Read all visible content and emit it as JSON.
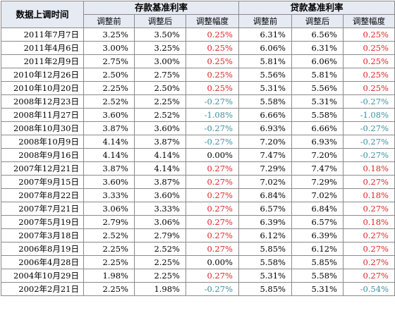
{
  "header": {
    "date_col": "数据上调时间",
    "deposit_group": "存款基准利率",
    "loan_group": "贷款基准利率",
    "sub_before": "调整前",
    "sub_after": "调整后",
    "sub_change": "调整幅度"
  },
  "colors": {
    "increase": "#e02222",
    "decrease": "#3a8fa0",
    "header_bg": "#e6eaf3"
  },
  "rows": [
    {
      "date": "2011年7月7日",
      "dep_before": "3.25%",
      "dep_after": "3.50%",
      "dep_change": "0.25%",
      "dep_dir": "up",
      "loan_before": "6.31%",
      "loan_after": "6.56%",
      "loan_change": "0.25%",
      "loan_dir": "up"
    },
    {
      "date": "2011年4月6日",
      "dep_before": "3.00%",
      "dep_after": "3.25%",
      "dep_change": "0.25%",
      "dep_dir": "up",
      "loan_before": "6.06%",
      "loan_after": "6.31%",
      "loan_change": "0.25%",
      "loan_dir": "up"
    },
    {
      "date": "2011年2月9日",
      "dep_before": "2.75%",
      "dep_after": "3.00%",
      "dep_change": "0.25%",
      "dep_dir": "up",
      "loan_before": "5.81%",
      "loan_after": "6.06%",
      "loan_change": "0.25%",
      "loan_dir": "up"
    },
    {
      "date": "2010年12月26日",
      "dep_before": "2.50%",
      "dep_after": "2.75%",
      "dep_change": "0.25%",
      "dep_dir": "up",
      "loan_before": "5.56%",
      "loan_after": "5.81%",
      "loan_change": "0.25%",
      "loan_dir": "up"
    },
    {
      "date": "2010年10月20日",
      "dep_before": "2.25%",
      "dep_after": "2.50%",
      "dep_change": "0.25%",
      "dep_dir": "up",
      "loan_before": "5.31%",
      "loan_after": "5.56%",
      "loan_change": "0.25%",
      "loan_dir": "up"
    },
    {
      "date": "2008年12月23日",
      "dep_before": "2.52%",
      "dep_after": "2.25%",
      "dep_change": "-0.27%",
      "dep_dir": "down",
      "loan_before": "5.58%",
      "loan_after": "5.31%",
      "loan_change": "-0.27%",
      "loan_dir": "down"
    },
    {
      "date": "2008年11月27日",
      "dep_before": "3.60%",
      "dep_after": "2.52%",
      "dep_change": "-1.08%",
      "dep_dir": "down",
      "loan_before": "6.66%",
      "loan_after": "5.58%",
      "loan_change": "-1.08%",
      "loan_dir": "down"
    },
    {
      "date": "2008年10月30日",
      "dep_before": "3.87%",
      "dep_after": "3.60%",
      "dep_change": "-0.27%",
      "dep_dir": "down",
      "loan_before": "6.93%",
      "loan_after": "6.66%",
      "loan_change": "-0.27%",
      "loan_dir": "down"
    },
    {
      "date": "2008年10月9日",
      "dep_before": "4.14%",
      "dep_after": "3.87%",
      "dep_change": "-0.27%",
      "dep_dir": "down",
      "loan_before": "7.20%",
      "loan_after": "6.93%",
      "loan_change": "-0.27%",
      "loan_dir": "down"
    },
    {
      "date": "2008年9月16日",
      "dep_before": "4.14%",
      "dep_after": "4.14%",
      "dep_change": "0.00%",
      "dep_dir": "zero",
      "loan_before": "7.47%",
      "loan_after": "7.20%",
      "loan_change": "-0.27%",
      "loan_dir": "down"
    },
    {
      "date": "2007年12月21日",
      "dep_before": "3.87%",
      "dep_after": "4.14%",
      "dep_change": "0.27%",
      "dep_dir": "up",
      "loan_before": "7.29%",
      "loan_after": "7.47%",
      "loan_change": "0.18%",
      "loan_dir": "up"
    },
    {
      "date": "2007年9月15日",
      "dep_before": "3.60%",
      "dep_after": "3.87%",
      "dep_change": "0.27%",
      "dep_dir": "up",
      "loan_before": "7.02%",
      "loan_after": "7.29%",
      "loan_change": "0.27%",
      "loan_dir": "up"
    },
    {
      "date": "2007年8月22日",
      "dep_before": "3.33%",
      "dep_after": "3.60%",
      "dep_change": "0.27%",
      "dep_dir": "up",
      "loan_before": "6.84%",
      "loan_after": "7.02%",
      "loan_change": "0.18%",
      "loan_dir": "up"
    },
    {
      "date": "2007年7月21日",
      "dep_before": "3.06%",
      "dep_after": "3.33%",
      "dep_change": "0.27%",
      "dep_dir": "up",
      "loan_before": "6.57%",
      "loan_after": "6.84%",
      "loan_change": "0.27%",
      "loan_dir": "up"
    },
    {
      "date": "2007年5月19日",
      "dep_before": "2.79%",
      "dep_after": "3.06%",
      "dep_change": "0.27%",
      "dep_dir": "up",
      "loan_before": "6.39%",
      "loan_after": "6.57%",
      "loan_change": "0.18%",
      "loan_dir": "up"
    },
    {
      "date": "2007年3月18日",
      "dep_before": "2.52%",
      "dep_after": "2.79%",
      "dep_change": "0.27%",
      "dep_dir": "up",
      "loan_before": "6.12%",
      "loan_after": "6.39%",
      "loan_change": "0.27%",
      "loan_dir": "up"
    },
    {
      "date": "2006年8月19日",
      "dep_before": "2.25%",
      "dep_after": "2.52%",
      "dep_change": "0.27%",
      "dep_dir": "up",
      "loan_before": "5.85%",
      "loan_after": "6.12%",
      "loan_change": "0.27%",
      "loan_dir": "up"
    },
    {
      "date": "2006年4月28日",
      "dep_before": "2.25%",
      "dep_after": "2.25%",
      "dep_change": "0.00%",
      "dep_dir": "zero",
      "loan_before": "5.58%",
      "loan_after": "5.85%",
      "loan_change": "0.27%",
      "loan_dir": "up"
    },
    {
      "date": "2004年10月29日",
      "dep_before": "1.98%",
      "dep_after": "2.25%",
      "dep_change": "0.27%",
      "dep_dir": "up",
      "loan_before": "5.31%",
      "loan_after": "5.58%",
      "loan_change": "0.27%",
      "loan_dir": "up"
    },
    {
      "date": "2002年2月21日",
      "dep_before": "2.25%",
      "dep_after": "1.98%",
      "dep_change": "-0.27%",
      "dep_dir": "down",
      "loan_before": "5.85%",
      "loan_after": "5.31%",
      "loan_change": "-0.54%",
      "loan_dir": "down"
    }
  ]
}
